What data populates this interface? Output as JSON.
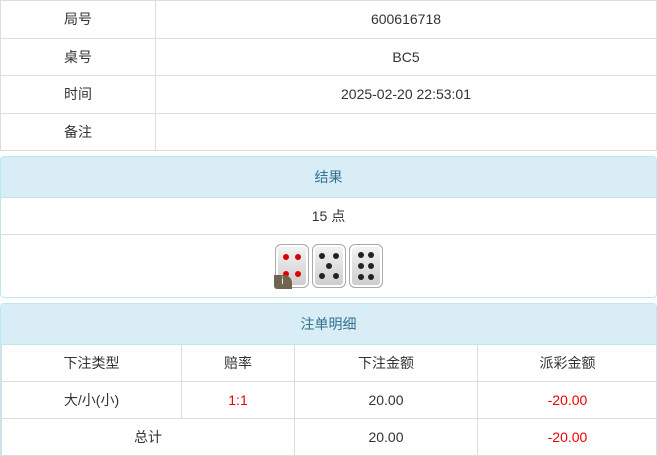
{
  "info": [
    {
      "label": "局号",
      "value": "600616718"
    },
    {
      "label": "桌号",
      "value": "BC5"
    },
    {
      "label": "时间",
      "value": "2025-02-20 22:53:01"
    },
    {
      "label": "备注",
      "value": ""
    }
  ],
  "result": {
    "title": "结果",
    "points": "15 点",
    "dice": [
      4,
      5,
      6
    ],
    "badge": "i"
  },
  "bets": {
    "title": "注单明细",
    "headers": [
      "下注类型",
      "赔率",
      "下注金额",
      "派彩金额"
    ],
    "rows": [
      {
        "type": "大/小(小)",
        "odds": "1:1",
        "amount": "20.00",
        "payout": "-20.00"
      }
    ],
    "total": {
      "label": "总计",
      "amount": "20.00",
      "payout": "-20.00"
    },
    "colors": {
      "negative": "#ee0000",
      "header_bg": "#d9edf7"
    }
  }
}
